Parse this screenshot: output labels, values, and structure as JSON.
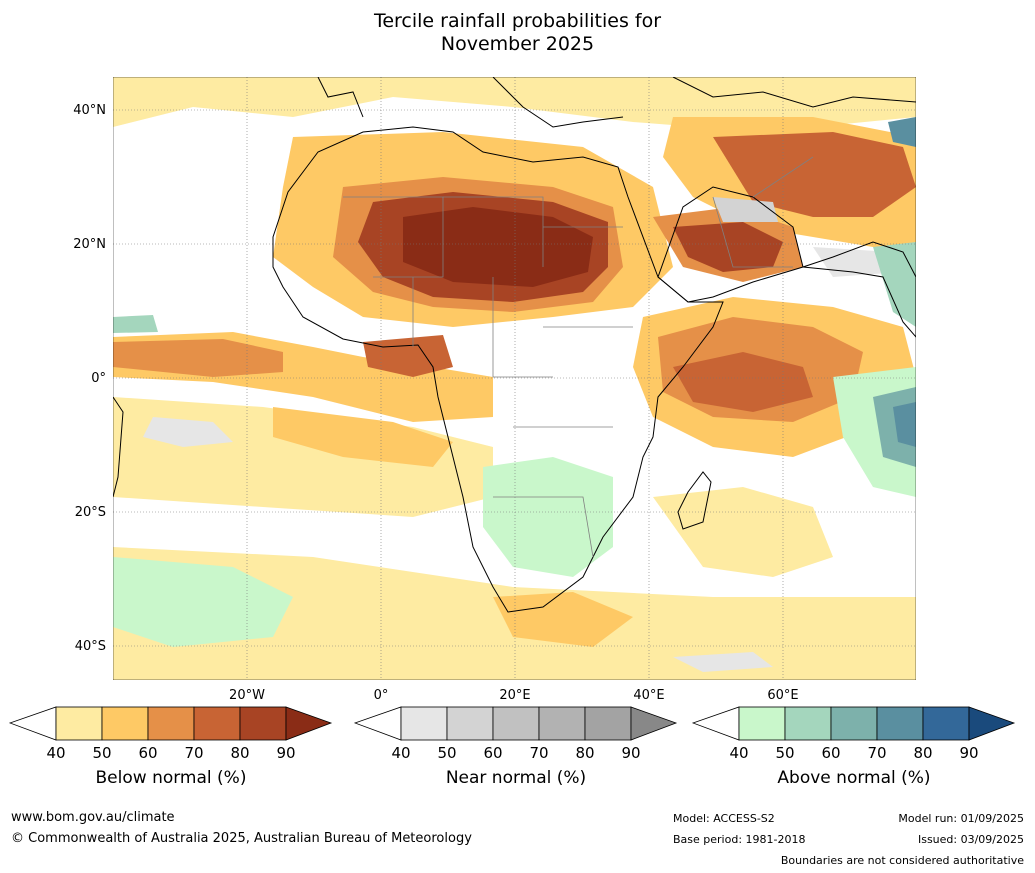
{
  "title_line1": "Tercile rainfall probabilities for",
  "title_line2": "November 2025",
  "lat_labels": [
    "40°N",
    "20°N",
    "0°",
    "20°S",
    "40°S"
  ],
  "lon_labels": [
    "20°W",
    "0°",
    "20°E",
    "40°E",
    "60°E"
  ],
  "legends": {
    "below": {
      "title": "Below normal (%)",
      "ticks": [
        "40",
        "50",
        "60",
        "70",
        "80",
        "90"
      ],
      "colors": [
        "#ffffff",
        "#feeba2",
        "#fec965",
        "#e59048",
        "#c86434",
        "#a84424",
        "#8a2c16"
      ]
    },
    "near": {
      "title": "Near normal (%)",
      "ticks": [
        "40",
        "50",
        "60",
        "70",
        "80",
        "90"
      ],
      "colors": [
        "#ffffff",
        "#e6e6e6",
        "#d3d3d3",
        "#c1c1c1",
        "#b2b2b2",
        "#a3a3a3",
        "#888888"
      ]
    },
    "above": {
      "title": "Above normal (%)",
      "ticks": [
        "40",
        "50",
        "60",
        "70",
        "80",
        "90"
      ],
      "colors": [
        "#ffffff",
        "#c9f7cb",
        "#a4d6bd",
        "#7db1ab",
        "#5a8fa0",
        "#336899",
        "#1a4a7c"
      ]
    }
  },
  "footer": {
    "url": "www.bom.gov.au/climate",
    "copyright": "© Commonwealth of Australia 2025, Australian Bureau of Meteorology",
    "model": "Model: ACCESS-S2",
    "base_period": "Base period: 1981-2018",
    "model_run": "Model run: 01/09/2025",
    "issued": "Issued: 03/09/2025",
    "disclaimer": "Boundaries are not considered authoritative"
  }
}
